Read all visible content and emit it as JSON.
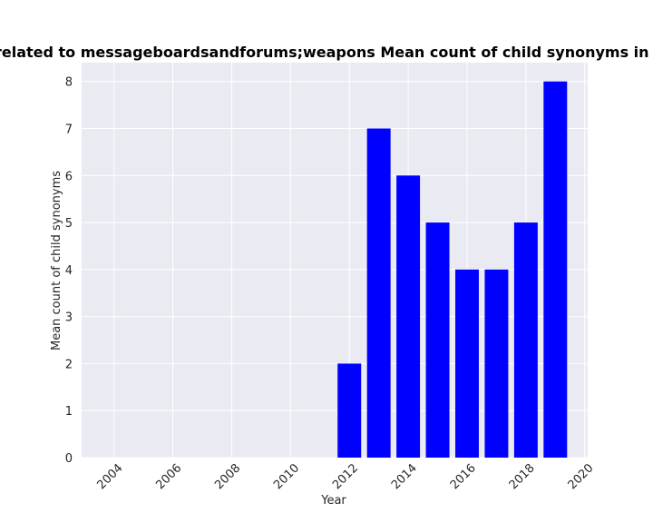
{
  "chart_data": {
    "type": "bar",
    "title": "es are related to messageboardsandforums;weapons Mean count of child synonyms in privacy",
    "xlabel": "Year",
    "ylabel": "Mean count of child synonyms",
    "x": [
      2012,
      2013,
      2014,
      2015,
      2016,
      2017,
      2018,
      2019
    ],
    "values": [
      2,
      7,
      6,
      5,
      4,
      4,
      5,
      8
    ],
    "xlim": [
      2002.9,
      2020.1
    ],
    "ylim": [
      0,
      8.4
    ],
    "xticks": [
      2004,
      2006,
      2008,
      2010,
      2012,
      2014,
      2016,
      2018,
      2020
    ],
    "yticks": [
      0,
      1,
      2,
      3,
      4,
      5,
      6,
      7,
      8
    ],
    "grid": true,
    "bar_color": "#0000ff",
    "plot_background": "#eaeaf2",
    "grid_color": "#ffffff"
  }
}
